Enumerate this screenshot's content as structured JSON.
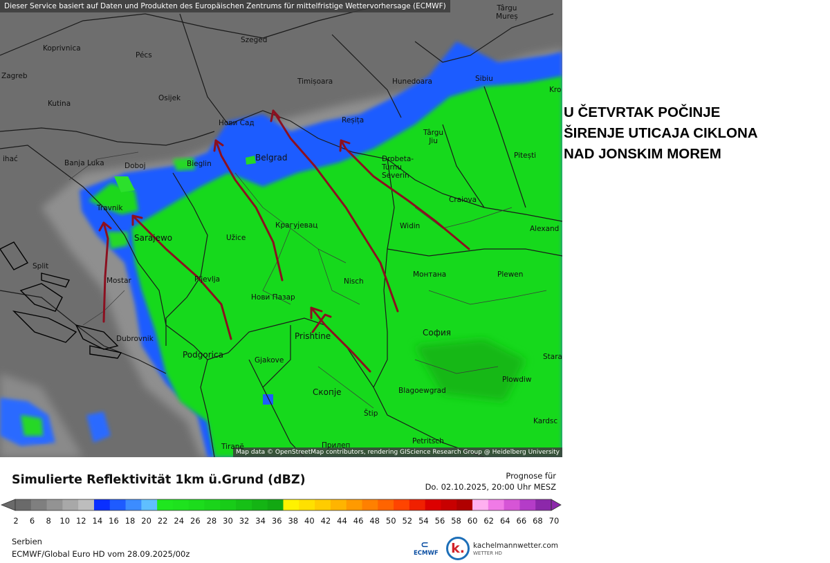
{
  "map": {
    "top_attribution": "Dieser Service basiert auf Daten und Produkten des Europäischen Zentrums für mittelfristige Wettervorhersage (ECMWF)",
    "bottom_attribution": "Map data © OpenStreetMap contributors, rendering GIScience Research Group @ Heidelberg University",
    "cities": [
      {
        "name": "Târgu Mureș",
        "label": "Târgu\nMureș"
      },
      {
        "name": "Koprivnica",
        "label": "Koprivnica"
      },
      {
        "name": "Szeged",
        "label": "Szeged"
      },
      {
        "name": "Pécs",
        "label": "Pécs"
      },
      {
        "name": "Zagreb",
        "label": "Zagreb"
      },
      {
        "name": "Timișoara",
        "label": "Timișoara"
      },
      {
        "name": "Hunedoara",
        "label": "Hunedoara"
      },
      {
        "name": "Sibiu",
        "label": "Sibiu"
      },
      {
        "name": "Kutina",
        "label": "Kutina"
      },
      {
        "name": "Osijek",
        "label": "Osijek"
      },
      {
        "name": "Нови Сад",
        "label": "Нови Сад"
      },
      {
        "name": "Reșița",
        "label": "Reșița"
      },
      {
        "name": "Târgu Jiu",
        "label": "Târgu\nJiu"
      },
      {
        "name": "Banja Luka",
        "label": "Banja Luka"
      },
      {
        "name": "Doboj",
        "label": "Doboj"
      },
      {
        "name": "Bieglin",
        "label": "Bieglin"
      },
      {
        "name": "Belgrad",
        "label": "Belgrad"
      },
      {
        "name": "Drobeta-Turnu Severin",
        "label": "Drobeta-\nTurnu\nSeverin"
      },
      {
        "name": "Pitești",
        "label": "Pitești"
      },
      {
        "name": "Travnik",
        "label": "Travnik"
      },
      {
        "name": "Craiova",
        "label": "Craiova"
      },
      {
        "name": "Крагујевац",
        "label": "Крагујевац"
      },
      {
        "name": "Widin",
        "label": "Widin"
      },
      {
        "name": "Alexandria",
        "label": "Alexand"
      },
      {
        "name": "Sarajewo",
        "label": "Sarajewo"
      },
      {
        "name": "Užice",
        "label": "Užice"
      },
      {
        "name": "Split",
        "label": "Split"
      },
      {
        "name": "Монтана",
        "label": "Монтана"
      },
      {
        "name": "Plewen",
        "label": "Plewen"
      },
      {
        "name": "Mostar",
        "label": "Mostar"
      },
      {
        "name": "Pljevlja",
        "label": "Pljevlja"
      },
      {
        "name": "Nisch",
        "label": "Nisch"
      },
      {
        "name": "Нови Пазар",
        "label": "Нови Пазар"
      },
      {
        "name": "Dubrovnik",
        "label": "Dubrovnik"
      },
      {
        "name": "Prishtine",
        "label": "Prishtine"
      },
      {
        "name": "София",
        "label": "София"
      },
      {
        "name": "Podgorica",
        "label": "Podgorica"
      },
      {
        "name": "Gjakove",
        "label": "Gjakove"
      },
      {
        "name": "Stara",
        "label": "Stara"
      },
      {
        "name": "Plowdiw",
        "label": "Plowdiw"
      },
      {
        "name": "Скопје",
        "label": "Скопје"
      },
      {
        "name": "Blagoewgrad",
        "label": "Blagoewgrad"
      },
      {
        "name": "Štip",
        "label": "Štip"
      },
      {
        "name": "Kardsc",
        "label": "Kardsc"
      },
      {
        "name": "Petritsch",
        "label": "Petritsch"
      },
      {
        "name": "Прилеп",
        "label": "Прилеп"
      },
      {
        "name": "Tiranë",
        "label": "Tiranë"
      },
      {
        "name": "Kroni",
        "label": "Kro"
      },
      {
        "name": "Bihać",
        "label": "ihać"
      }
    ]
  },
  "annotation": {
    "lines": [
      "U ČETVRTAK POČINJE",
      "ŠIRENJE UTICAJA CIKLONA",
      "NAD JONSKIM MOREM"
    ]
  },
  "legend": {
    "title": "Simulierte Reflektivität 1km ü.Grund (dBZ)",
    "prognose_label": "Prognose für",
    "prognose_date": "Do. 02.10.2025, 20:00 Uhr MESZ",
    "ticks": [
      "2",
      "6",
      "8",
      "10",
      "12",
      "14",
      "16",
      "18",
      "20",
      "22",
      "24",
      "26",
      "28",
      "30",
      "32",
      "34",
      "36",
      "38",
      "40",
      "42",
      "44",
      "46",
      "48",
      "50",
      "52",
      "54",
      "56",
      "58",
      "60",
      "62",
      "64",
      "66",
      "68",
      "70"
    ],
    "colors": [
      "#6a6a6a",
      "#7f7f7f",
      "#939393",
      "#a8a8a8",
      "#bdbdbd",
      "#0a2fff",
      "#1e5bff",
      "#3c8cff",
      "#5fbfff",
      "#1fe61f",
      "#1ee21e",
      "#1cdc1c",
      "#1ad41a",
      "#18cc18",
      "#16c016",
      "#14b414",
      "#12a812",
      "#fff200",
      "#ffe000",
      "#ffcc00",
      "#ffb400",
      "#ff9a00",
      "#ff8000",
      "#ff6400",
      "#ff4400",
      "#f02000",
      "#dc0000",
      "#c80000",
      "#b00000",
      "#ffb0f0",
      "#f07ae6",
      "#d655d6",
      "#b43cc8",
      "#8c28aa"
    ]
  },
  "footer": {
    "region": "Serbien",
    "model": "ECMWF/Global Euro HD vom  28.09.2025/00z",
    "ecmwf_logo": "ECMWF",
    "brand": "kachelmannwetter.com",
    "brand_sub": "WETTER HD",
    "brand_mark": "k."
  }
}
